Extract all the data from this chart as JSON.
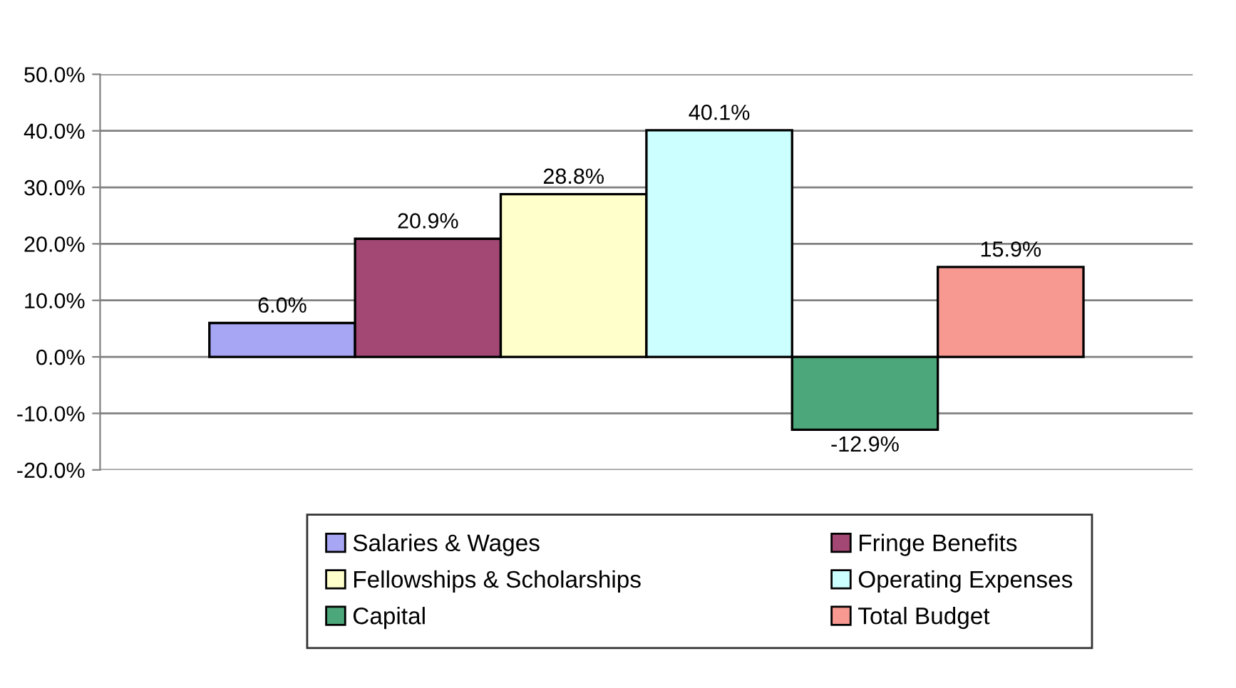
{
  "chart_data": {
    "type": "bar",
    "categories": [
      null
    ],
    "series": [
      {
        "name": "Salaries & Wages",
        "color": "#a6a6f5",
        "values": [
          6.0
        ],
        "value_labels": [
          "6.0%"
        ]
      },
      {
        "name": "Fringe Benefits",
        "color": "#a34874",
        "values": [
          20.9
        ],
        "value_labels": [
          "20.9%"
        ]
      },
      {
        "name": "Fellowships & Scholarships",
        "color": "#ffffcc",
        "values": [
          28.8
        ],
        "value_labels": [
          "28.8%"
        ]
      },
      {
        "name": "Operating Expenses",
        "color": "#ccffff",
        "values": [
          40.1
        ],
        "value_labels": [
          "40.1%"
        ]
      },
      {
        "name": "Capital",
        "color": "#4ca87a",
        "values": [
          -12.9
        ],
        "value_labels": [
          "-12.9%"
        ]
      },
      {
        "name": "Total Budget",
        "color": "#f79990",
        "values": [
          15.9
        ],
        "value_labels": [
          "15.9%"
        ]
      }
    ],
    "ylim": [
      -20,
      50
    ],
    "yticks": [
      {
        "value": -20,
        "label": "-20.0%"
      },
      {
        "value": -10,
        "label": "-10.0%"
      },
      {
        "value": 0,
        "label": "0.0%"
      },
      {
        "value": 10,
        "label": "10.0%"
      },
      {
        "value": 20,
        "label": "20.0%"
      },
      {
        "value": 30,
        "label": "30.0%"
      },
      {
        "value": 40,
        "label": "40.0%"
      },
      {
        "value": 50,
        "label": "50.0%"
      }
    ],
    "grid": "y",
    "legend": "bottom"
  }
}
